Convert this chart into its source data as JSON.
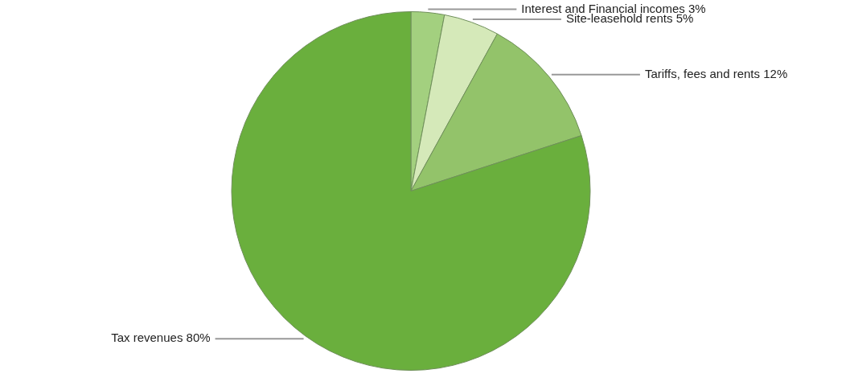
{
  "chart_data": {
    "type": "pie",
    "categories": [
      "Interest and Financial incomes",
      "Site-leasehold rents",
      "Tariffs, fees and rents",
      "Tax revenues"
    ],
    "values": [
      3,
      5,
      12,
      80
    ],
    "value_labels": [
      "3%",
      "5%",
      "12%",
      "80%"
    ],
    "colors": [
      "#a3d07f",
      "#d5e9b9",
      "#93c36a",
      "#6aaf3d"
    ],
    "legend": false
  }
}
